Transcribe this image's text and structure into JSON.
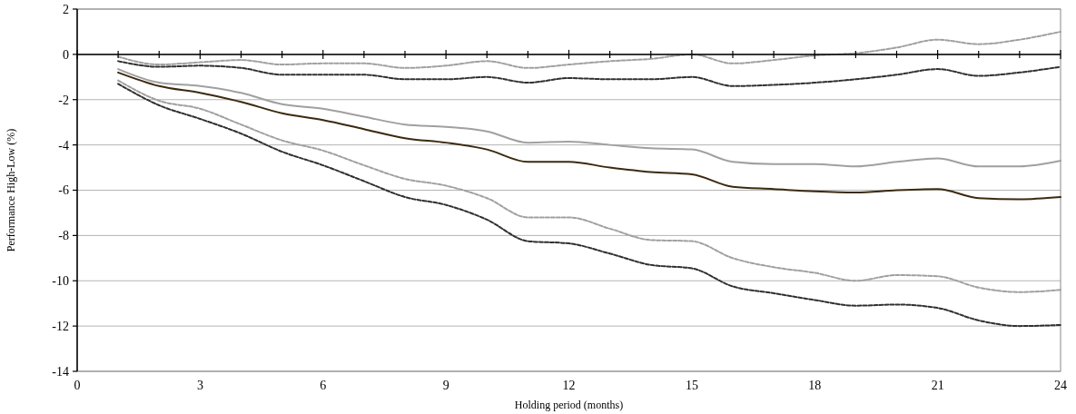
{
  "chart_data": {
    "type": "line",
    "xlabel": "Holding period (months)",
    "ylabel": "Performance High-Low (%)",
    "x": [
      1,
      2,
      3,
      4,
      5,
      6,
      7,
      8,
      9,
      10,
      11,
      12,
      13,
      14,
      15,
      16,
      17,
      18,
      19,
      20,
      21,
      22,
      23,
      24
    ],
    "xlim": [
      0,
      24
    ],
    "xticks": [
      0,
      {
        "value": 1,
        "label": null
      },
      {
        "value": 2,
        "label": null
      },
      3,
      {
        "value": 4,
        "label": null
      },
      {
        "value": 5,
        "label": null
      },
      6,
      {
        "value": 7,
        "label": null
      },
      {
        "value": 8,
        "label": null
      },
      9,
      {
        "value": 10,
        "label": null
      },
      {
        "value": 11,
        "label": null
      },
      12,
      {
        "value": 13,
        "label": null
      },
      {
        "value": 14,
        "label": null
      },
      15,
      {
        "value": 16,
        "label": null
      },
      {
        "value": 17,
        "label": null
      },
      18,
      {
        "value": 19,
        "label": null
      },
      {
        "value": 20,
        "label": null
      },
      21,
      {
        "value": 22,
        "label": null
      },
      {
        "value": 23,
        "label": null
      },
      24
    ],
    "ylim": [
      -14,
      2
    ],
    "yticks": [
      -14,
      -12,
      -10,
      -8,
      -6,
      -4,
      -2,
      0,
      2
    ],
    "grid": "y",
    "marker": "none",
    "series": [
      {
        "color": "#a0a0a0",
        "line_style": "dashed",
        "values": [
          -0.1,
          -0.45,
          -0.35,
          -0.25,
          -0.45,
          -0.4,
          -0.4,
          -0.6,
          -0.5,
          -0.3,
          -0.6,
          -0.45,
          -0.3,
          -0.2,
          0,
          -0.4,
          -0.25,
          -0.05,
          0.05,
          0.3,
          0.65,
          0.45,
          0.65,
          1.0
        ]
      },
      {
        "color": "#303030",
        "line_style": "dashed",
        "values": [
          -0.3,
          -0.55,
          -0.5,
          -0.6,
          -0.9,
          -0.9,
          -0.9,
          -1.1,
          -1.1,
          -1.0,
          -1.25,
          -1.05,
          -1.1,
          -1.1,
          -1.0,
          -1.4,
          -1.35,
          -1.25,
          -1.1,
          -0.9,
          -0.65,
          -0.95,
          -0.8,
          -0.55
        ]
      },
      {
        "color": "#a0a0a0",
        "line_style": "solid",
        "values": [
          -0.65,
          -1.25,
          -1.4,
          -1.7,
          -2.2,
          -2.4,
          -2.75,
          -3.1,
          -3.2,
          -3.4,
          -3.9,
          -3.85,
          -4.0,
          -4.15,
          -4.2,
          -4.75,
          -4.85,
          -4.85,
          -4.95,
          -4.75,
          -4.6,
          -4.95,
          -4.95,
          -4.7
        ]
      },
      {
        "color": "#3b2a10",
        "line_style": "solid",
        "values": [
          -0.8,
          -1.4,
          -1.7,
          -2.1,
          -2.6,
          -2.9,
          -3.3,
          -3.7,
          -3.9,
          -4.2,
          -4.75,
          -4.75,
          -5.0,
          -5.2,
          -5.3,
          -5.85,
          -5.95,
          -6.05,
          -6.1,
          -6.0,
          -5.95,
          -6.35,
          -6.4,
          -6.3
        ]
      },
      {
        "color": "#a0a0a0",
        "line_style": "dashed",
        "values": [
          -1.15,
          -2.05,
          -2.4,
          -3.1,
          -3.8,
          -4.25,
          -4.9,
          -5.5,
          -5.8,
          -6.35,
          -7.2,
          -7.2,
          -7.7,
          -8.2,
          -8.25,
          -9.0,
          -9.4,
          -9.65,
          -10.0,
          -9.75,
          -9.8,
          -10.3,
          -10.5,
          -10.4
        ]
      },
      {
        "color": "#303030",
        "line_style": "dashed",
        "values": [
          -1.3,
          -2.25,
          -2.85,
          -3.5,
          -4.3,
          -4.9,
          -5.6,
          -6.3,
          -6.65,
          -7.3,
          -8.25,
          -8.35,
          -8.8,
          -9.3,
          -9.45,
          -10.25,
          -10.55,
          -10.85,
          -11.1,
          -11.05,
          -11.2,
          -11.75,
          -12.0,
          -11.95
        ]
      }
    ]
  }
}
